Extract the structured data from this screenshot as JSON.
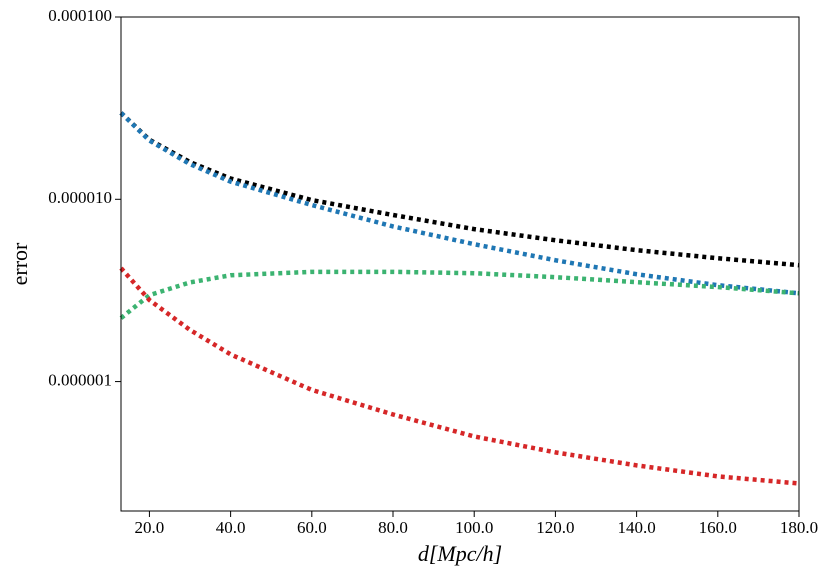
{
  "chart_data": {
    "type": "line",
    "xlabel": "d[Mpc/h]",
    "ylabel": "error",
    "x": [
      13,
      20,
      30,
      40,
      60,
      80,
      100,
      120,
      140,
      160,
      180
    ],
    "series": [
      {
        "color": "#000000",
        "values": [
          2.98e-05,
          2.12e-05,
          1.6e-05,
          1.3e-05,
          9.9e-06,
          8.2e-06,
          6.86e-06,
          5.96e-06,
          5.26e-06,
          4.75e-06,
          4.35e-06
        ]
      },
      {
        "color": "#1f77b4",
        "values": [
          2.98e-05,
          2.1e-05,
          1.56e-05,
          1.25e-05,
          9.3e-06,
          7.1e-06,
          5.67e-06,
          4.63e-06,
          3.88e-06,
          3.38e-06,
          3.05e-06
        ]
      },
      {
        "color": "#3cb371",
        "values": [
          2.23e-06,
          2.98e-06,
          3.5e-06,
          3.83e-06,
          4e-06,
          4e-06,
          3.93e-06,
          3.74e-06,
          3.51e-06,
          3.3e-06,
          3.05e-06
        ]
      },
      {
        "color": "#d62728",
        "values": [
          4.19e-06,
          2.8e-06,
          1.92e-06,
          1.41e-06,
          9e-07,
          6.6e-07,
          5e-07,
          4.09e-07,
          3.47e-07,
          3.02e-07,
          2.76e-07
        ]
      }
    ],
    "xlim": [
      13,
      180
    ],
    "xticks": [
      {
        "value": 20,
        "label": "20.0"
      },
      {
        "value": 40,
        "label": "40.0"
      },
      {
        "value": 60,
        "label": "60.0"
      },
      {
        "value": 80,
        "label": "80.0"
      },
      {
        "value": 100,
        "label": "100.0"
      },
      {
        "value": 120,
        "label": "120.0"
      },
      {
        "value": 140,
        "label": "140.0"
      },
      {
        "value": 160,
        "label": "160.0"
      },
      {
        "value": 180,
        "label": "180.0"
      }
    ],
    "ylim": [
      1.95e-07,
      0.0001
    ],
    "ylog": true,
    "yticks": [
      {
        "value": 0.0001,
        "label": "0.000100"
      },
      {
        "value": 1e-05,
        "label": "0.000010"
      },
      {
        "value": 1e-06,
        "label": "0.000001"
      }
    ]
  }
}
